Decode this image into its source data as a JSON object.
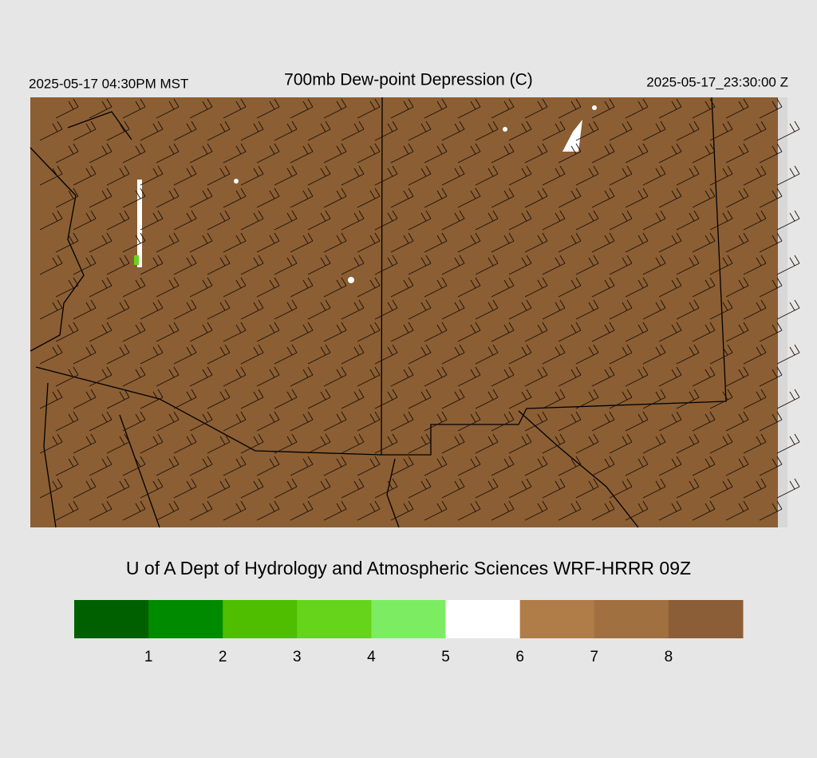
{
  "header": {
    "left": "2025-05-17 04:30PM MST",
    "title": "700mb Dew-point Depression (C)",
    "right": "2025-05-17_23:30:00 Z"
  },
  "credit": "U of A Dept of Hydrology and Atmospheric Sciences WRF-HRRR 09Z",
  "colorbar": {
    "colors": [
      "#006000",
      "#008a00",
      "#50be00",
      "#66d41a",
      "#7ced62",
      "#ffffff",
      "#b07c48",
      "#a07040",
      "#8b5e38"
    ],
    "ticks": [
      1,
      2,
      3,
      4,
      5,
      6,
      7,
      8
    ]
  }
}
